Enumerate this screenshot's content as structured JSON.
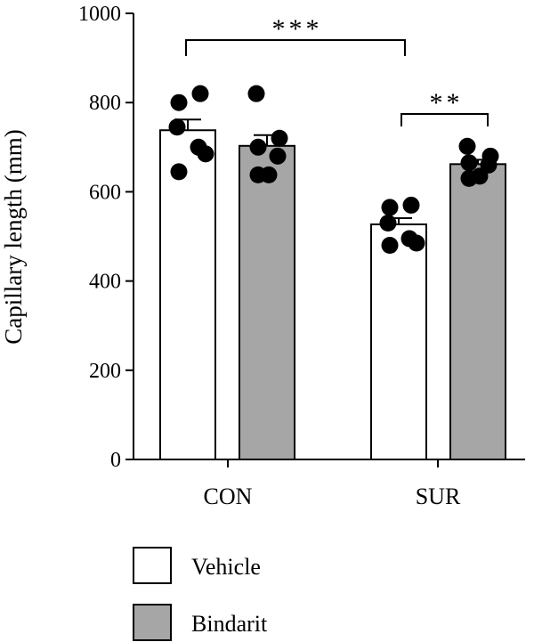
{
  "chart_data": {
    "type": "bar",
    "ylabel": "Capillary length (mm)",
    "xlabel": "",
    "ylim": [
      0,
      1000
    ],
    "yticks": [
      0,
      200,
      400,
      600,
      800,
      1000
    ],
    "categories": [
      "CON",
      "SUR"
    ],
    "series": [
      {
        "name": "Vehicle",
        "color": "#ffffff",
        "values": [
          738,
          527
        ],
        "sem": [
          24,
          14
        ],
        "points": [
          [
            800,
            820,
            745,
            700,
            685,
            645
          ],
          [
            565,
            570,
            530,
            495,
            485,
            480
          ]
        ]
      },
      {
        "name": "Bindarit",
        "color": "#a6a6a6",
        "values": [
          703,
          662
        ],
        "sem": [
          24,
          10
        ],
        "points": [
          [
            820,
            720,
            700,
            680,
            638,
            638
          ],
          [
            702,
            680,
            665,
            660,
            635,
            630
          ]
        ]
      }
    ],
    "significance": [
      {
        "label": "***",
        "from": "CON Vehicle",
        "to": "SUR Vehicle"
      },
      {
        "label": "**",
        "from": "SUR Vehicle",
        "to": "SUR Bindarit"
      }
    ],
    "legend": {
      "position": "bottom-left",
      "entries": [
        "Vehicle",
        "Bindarit"
      ]
    }
  }
}
